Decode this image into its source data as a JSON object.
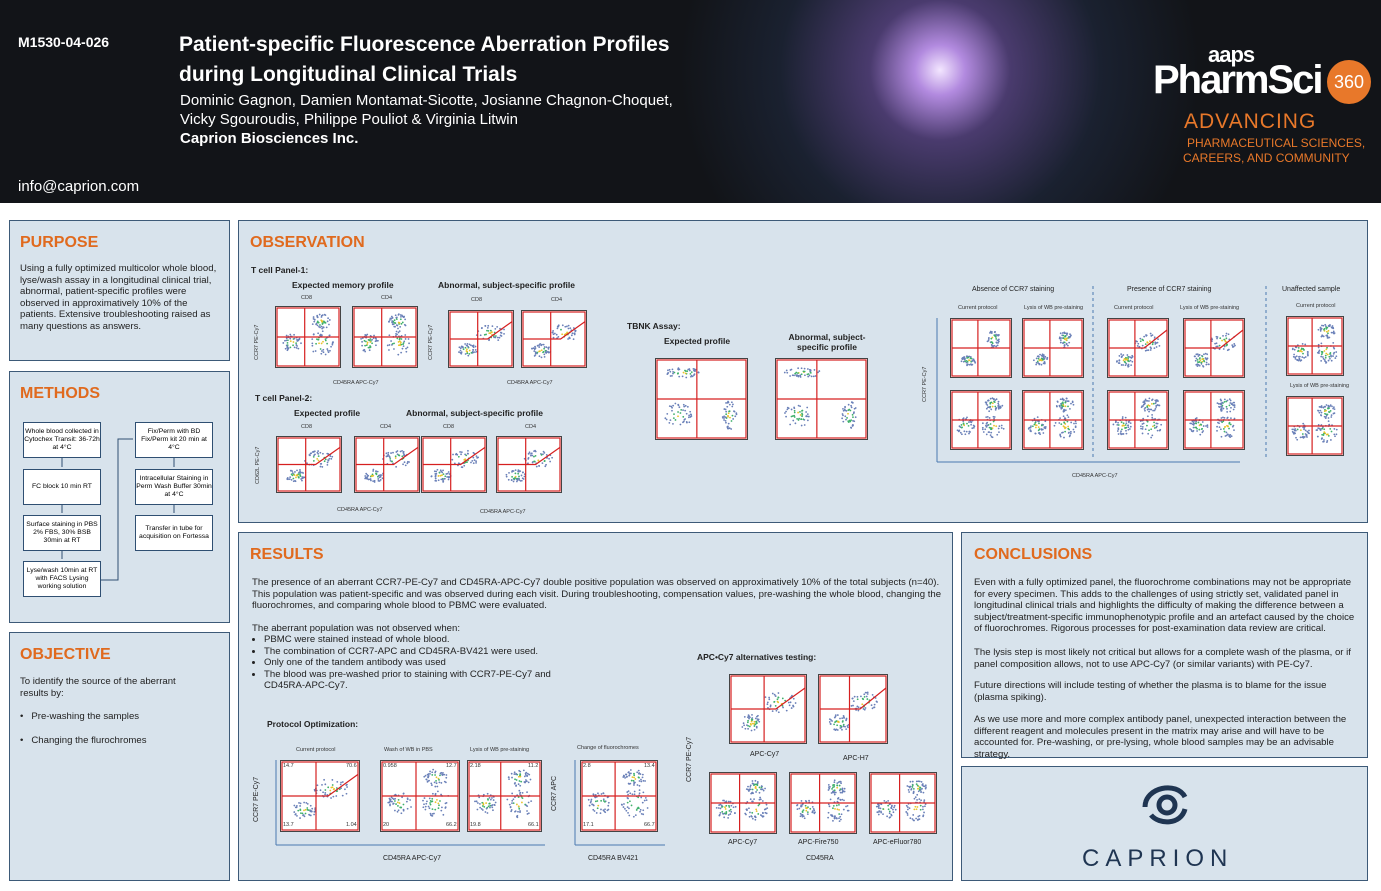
{
  "header": {
    "code": "M1530-04-026",
    "title": "Patient-specific Fluorescence Aberration Profiles during Longitudinal Clinical Trials",
    "authors": "Dominic Gagnon, Damien Montamat-Sicotte, Josianne Chagnon-Choquet, Vicky Sgouroudis, Philippe Pouliot & Virginia Litwin",
    "affiliation": "Caprion Biosciences Inc.",
    "email": "info@caprion.com",
    "logo": {
      "brand": "aaps",
      "name": "PharmSci",
      "number": "360",
      "tagline1": "ADVANCING",
      "tagline2": "PHARMACEUTICAL SCIENCES,",
      "tagline3": "CAREERS, AND COMMUNITY"
    }
  },
  "purpose": {
    "title": "PURPOSE",
    "text": "Using a fully optimized multicolor whole blood, lyse/wash assay in a longitudinal clinical trial, abnormal, patient-specific profiles were observed in approximatively 10% of the patients. Extensive troubleshooting raised as many questions as answers."
  },
  "methods": {
    "title": "METHODS",
    "steps": [
      "Whole blood collected in Cytochex Transit: 36-72h at 4°C",
      "FC block 10 min RT",
      "Surface staining in PBS 2% FBS, 30% BSB 30min at RT",
      "Lyse/wash 10min at RT with FACS Lysing working solution",
      "Fix/Perm with BD Fix/Perm kit 20 min at 4°C",
      "Intracellular Staining in Perm Wash Buffer 30min at 4°C",
      "Transfer in tube for acquisition on Fortessa"
    ]
  },
  "objective": {
    "title": "OBJECTIVE",
    "text": "To identify the source of the aberrant results by:",
    "items": [
      "Pre-washing the samples",
      "Changing the flurochromes"
    ]
  },
  "observation": {
    "title": "OBSERVATION",
    "tcell1": {
      "heading": "T cell Panel-1:",
      "expected": "Expected memory profile",
      "abnormal": "Abnormal, subject-specific profile",
      "cols": [
        "CD8",
        "CD4",
        "CD8",
        "CD4"
      ],
      "ylabel": "CCR7 PE-Cy7",
      "xlabel": "CD45RA APC-Cy7"
    },
    "tcell2": {
      "heading": "T cell Panel-2:",
      "expected": "Expected profile",
      "abnormal": "Abnormal, subject-specific profile",
      "cols": [
        "CD8",
        "CD4",
        "CD8",
        "CD4"
      ],
      "ylabel": "CD62L PE-Cy7",
      "xlabel": "CD45RA APC-Cy7"
    },
    "tbnk": {
      "heading": "TBNK Assay:",
      "expected": "Expected profile",
      "abnormal": "Abnormal, subject-specific profile"
    },
    "ccr7": {
      "groups": [
        "Absence of CCR7 staining",
        "Presence of CCR7 staining",
        "Unaffected sample"
      ],
      "protocols": [
        "Current protocol",
        "Lysis of WB pre-staining",
        "Current protocol",
        "Lysis of WB pre-staining",
        "Current protocol",
        "Lysis of WB pre-staining"
      ],
      "ylabel": "CCR7 PE-Cy7",
      "xlabel": "CD45RA APC-Cy7"
    }
  },
  "results": {
    "title": "RESULTS",
    "paragraph": "The presence of an aberrant CCR7-PE-Cy7 and CD45RA-APC-Cy7 double positive population was observed on approximatively 10% of the total subjects (n=40). This population was patient-specific and was observed during each visit. During troubleshooting, compensation values, pre-washing the whole blood, changing the fluorochromes, and comparing whole blood to PBMC were evaluated.",
    "not_observed": "The aberrant population was not observed when:",
    "items": [
      "PBMC were stained instead of whole blood.",
      "The combination of CCR7-APC and CD45RA-BV421 were used.",
      "Only one of the tandem antibody was used",
      "The blood was pre-washed prior to staining with CCR7-PE-Cy7 and CD45RA-APC-Cy7."
    ],
    "protocol": {
      "heading": "Protocol Optimization:",
      "plots": [
        {
          "title": "Current protocol",
          "quadrants": [
            14.7,
            70.6,
            13.7,
            1.04
          ]
        },
        {
          "title": "Wash of WB in PBS",
          "quadrants": [
            0.958,
            12.7,
            20,
            66.2
          ]
        },
        {
          "title": "Lysis of WB pre-staining",
          "quadrants": [
            2.18,
            11.2,
            19.8,
            66.1
          ]
        },
        {
          "title": "Change of fluorochromes",
          "quadrants": [
            2.8,
            13.4,
            17.1,
            66.7
          ]
        }
      ],
      "ylabel": "CCR7 PE-Cy7",
      "ylabel2": "CCR7 APC",
      "xlabel": "CD45RA APC-Cy7",
      "xlabel2": "CD45RA BV421"
    },
    "alternatives": {
      "heading": "APC•Cy7 alternatives testing:",
      "labels": [
        "APC-Cy7",
        "APC-H7",
        "APC-Cy7",
        "APC-Fire750",
        "APC-eFluor780"
      ],
      "ylabel": "CCR7 PE-Cy7",
      "xlabel": "CD45RA"
    }
  },
  "conclusions": {
    "title": "CONCLUSIONS",
    "paragraphs": [
      "Even with a fully optimized panel, the fluorochrome combinations may not be appropriate for every specimen. This adds to the challenges of using strictly set, validated panel in longitudinal clinical trials and highlights the difficulty of making the difference between a subject/treatment-specific immunophenotypic profile and an artefact caused by the choice of fluorochromes. Rigorous processes for post-examination data review are critical.",
      "The lysis step is most likely not critical but allows for a complete wash of the plasma, or if panel composition allows, not to use APC-Cy7 (or similar variants) with PE-Cy7.",
      "Future directions will include testing of whether the plasma is to blame for the issue (plasma spiking).",
      "As we use more and more complex antibody panel, unexpected interaction between the different reagent and molecules present in the matrix may arise and will have to be accounted for. Pre-washing, or pre-lysing, whole blood samples may be an advisable strategy."
    ]
  },
  "footer": {
    "brand": "CAPRION"
  }
}
